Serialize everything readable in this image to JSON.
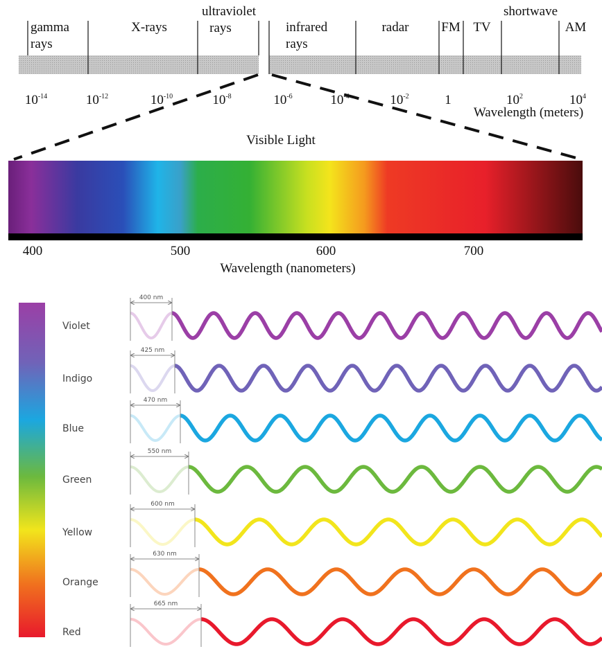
{
  "spectrum": {
    "bands": [
      [
        "gamma",
        "rays"
      ],
      [
        "X-rays"
      ],
      [
        "ultraviolet",
        "rays"
      ],
      [
        "infrared",
        "rays"
      ],
      [
        "radar"
      ],
      [
        "FM"
      ],
      [
        "TV"
      ],
      [
        "shortwave"
      ],
      [
        "AM"
      ]
    ],
    "wavelength_ticks": [
      {
        "base": "10",
        "exponent": "-14"
      },
      {
        "base": "10",
        "exponent": "-12"
      },
      {
        "base": "10",
        "exponent": "-10"
      },
      {
        "base": "10",
        "exponent": "-8"
      },
      {
        "base": "10",
        "exponent": "-6"
      },
      {
        "base": "10",
        "exponent": "-4"
      },
      {
        "base": "10",
        "exponent": "-2"
      },
      {
        "base": "1"
      },
      {
        "base": "10",
        "exponent": "2"
      },
      {
        "base": "10",
        "exponent": "4"
      }
    ],
    "axis_label": "Wavelength (meters)"
  },
  "visible": {
    "title": "Visible Light",
    "ticks": [
      "400",
      "500",
      "600",
      "700"
    ],
    "axis_label": "Wavelength (nanometers)"
  },
  "colors": [
    {
      "name": "Violet",
      "wavelength": "400 nm"
    },
    {
      "name": "Indigo",
      "wavelength": "425 nm"
    },
    {
      "name": "Blue",
      "wavelength": "470 nm"
    },
    {
      "name": "Green",
      "wavelength": "550 nm"
    },
    {
      "name": "Yellow",
      "wavelength": "600 nm"
    },
    {
      "name": "Orange",
      "wavelength": "630 nm"
    },
    {
      "name": "Red",
      "wavelength": "665 nm"
    }
  ]
}
